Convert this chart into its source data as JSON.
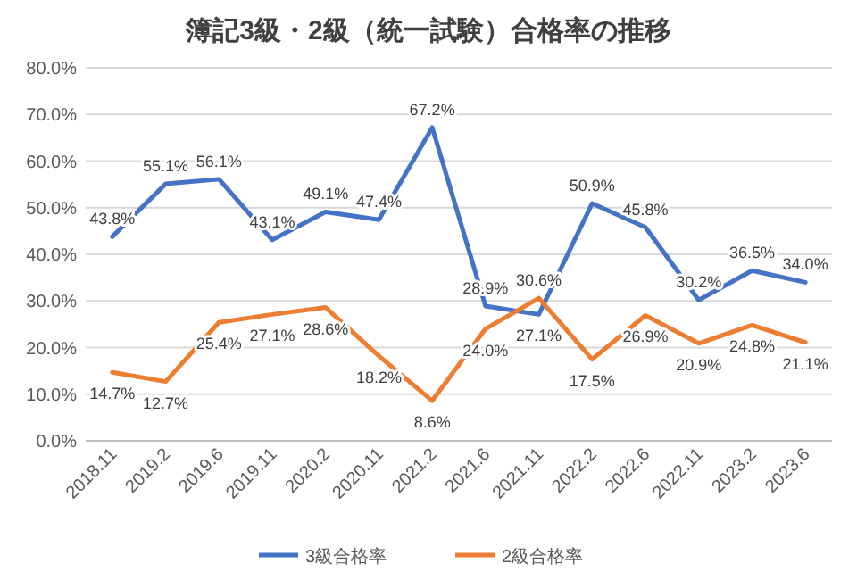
{
  "chart_data": {
    "type": "line",
    "title": "簿記3級・2級（統一試験）合格率の推移",
    "categories": [
      "2018.11",
      "2019.2",
      "2019.6",
      "2019.11",
      "2020.2",
      "2020.11",
      "2021.2",
      "2021.6",
      "2021.11",
      "2022.2",
      "2022.6",
      "2022.11",
      "2023.2",
      "2023.6"
    ],
    "series": [
      {
        "name": "3級合格率",
        "color": "#4472c4",
        "values": [
          43.8,
          55.1,
          56.1,
          43.1,
          49.1,
          47.4,
          67.2,
          28.9,
          27.1,
          50.9,
          45.8,
          30.2,
          36.5,
          34.0
        ],
        "value_labels": [
          "43.8%",
          "55.1%",
          "56.1%",
          "43.1%",
          "49.1%",
          "47.4%",
          "67.2%",
          "28.9%",
          "27.1%",
          "50.9%",
          "45.8%",
          "30.2%",
          "36.5%",
          "34.0%"
        ]
      },
      {
        "name": "2級合格率",
        "color": "#ed7d31",
        "values": [
          14.7,
          12.7,
          25.4,
          27.1,
          28.6,
          18.2,
          8.6,
          24.0,
          30.6,
          17.5,
          26.9,
          20.9,
          24.8,
          21.1
        ],
        "value_labels": [
          "14.7%",
          "12.7%",
          "25.4%",
          "27.1%",
          "28.6%",
          "18.2%",
          "8.6%",
          "24.0%",
          "30.6%",
          "17.5%",
          "26.9%",
          "20.9%",
          "24.8%",
          "21.1%"
        ]
      }
    ],
    "ylim": [
      0,
      80
    ],
    "yticks": [
      {
        "value": 0,
        "label": "0.0%"
      },
      {
        "value": 10,
        "label": "10.0%"
      },
      {
        "value": 20,
        "label": "20.0%"
      },
      {
        "value": 30,
        "label": "30.0%"
      },
      {
        "value": 40,
        "label": "40.0%"
      },
      {
        "value": 50,
        "label": "50.0%"
      },
      {
        "value": 60,
        "label": "60.0%"
      },
      {
        "value": 70,
        "label": "70.0%"
      },
      {
        "value": 80,
        "label": "80.0%"
      }
    ],
    "grid": "y",
    "legend": "bottom",
    "marker": "none",
    "line_style": "solid"
  }
}
